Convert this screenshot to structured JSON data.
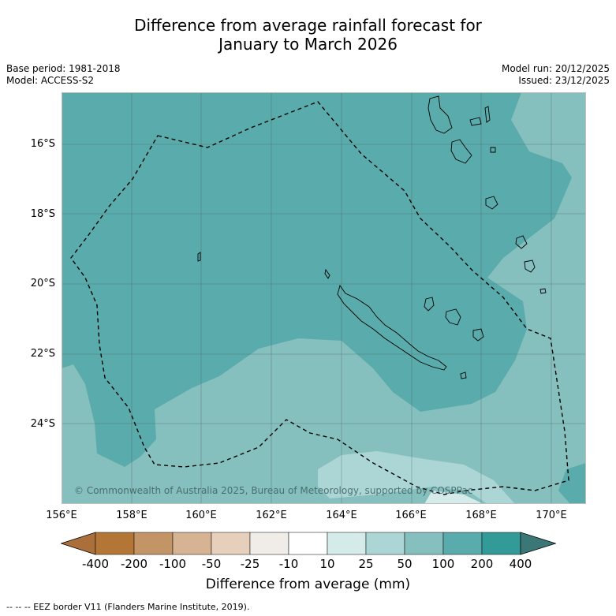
{
  "title": {
    "line1": "Difference from average rainfall forecast for",
    "line2": "January to March 2026"
  },
  "meta": {
    "base_period": "Base period: 1981-2018",
    "model": "Model: ACCESS-S2",
    "model_run": "Model run: 20/12/2025",
    "issued": "Issued: 23/12/2025"
  },
  "map": {
    "credit": "© Commonwealth of Australia 2025, Bureau of Meteorology, supported by COSPPac",
    "lat_ticks": [
      "16°S",
      "18°S",
      "20°S",
      "22°S",
      "24°S"
    ],
    "lon_ticks": [
      "156°E",
      "158°E",
      "160°E",
      "162°E",
      "164°E",
      "166°E",
      "168°E",
      "170°E"
    ],
    "colors": {
      "band_200": "#5aabab",
      "band_100": "#85bfbe",
      "band_50": "#acd6d6"
    }
  },
  "colorbar": {
    "labels": [
      "-400",
      "-200",
      "-100",
      "-50",
      "-25",
      "-10",
      "10",
      "25",
      "50",
      "100",
      "200",
      "400"
    ],
    "colors": [
      "#aa6f3a",
      "#b47637",
      "#c39466",
      "#d5b393",
      "#e6d0bc",
      "#f0ece8",
      "#ffffff",
      "#d5ebe9",
      "#acd6d6",
      "#85bfbe",
      "#5aabab",
      "#339b97",
      "#3c7777"
    ],
    "title": "Difference from average (mm)"
  },
  "footer": {
    "legend": "--  --  -- EEZ border V11 (Flanders Marine Institute, 2019)."
  }
}
